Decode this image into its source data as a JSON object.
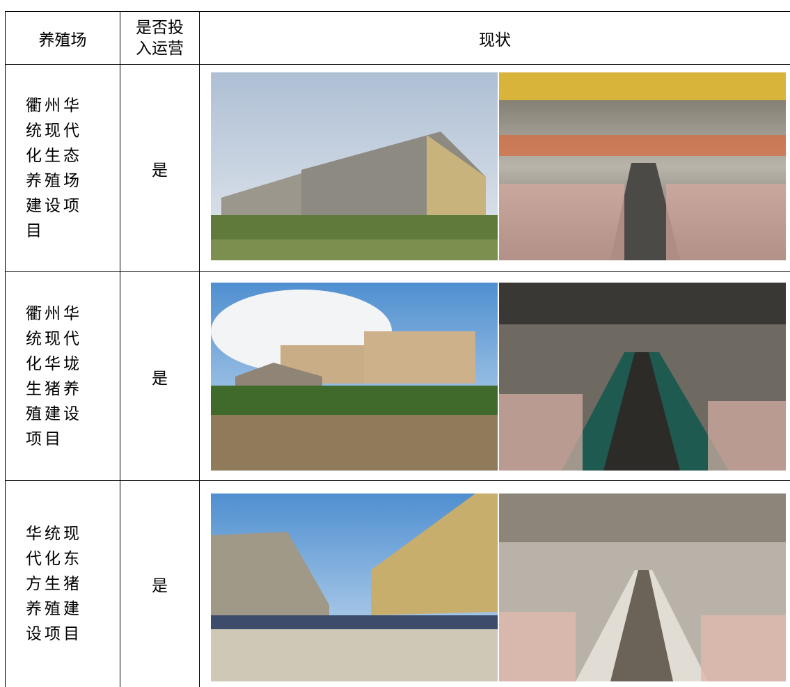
{
  "table": {
    "header": [
      "养殖场",
      "是否投入运营",
      "现状"
    ],
    "rows": [
      [
        "衢州华统现代化生态养殖场建设项目",
        "是"
      ],
      [
        "衢州华统现代化华垅生猪养殖建设项目",
        "是"
      ],
      [
        "华统现代化东方生猪养殖建设项目",
        "是"
      ]
    ]
  }
}
